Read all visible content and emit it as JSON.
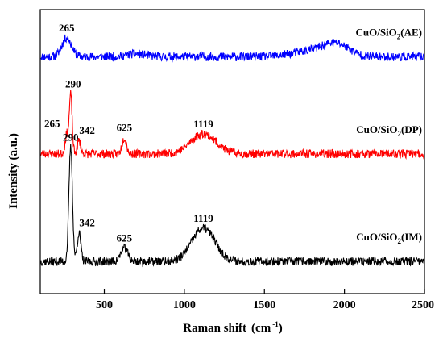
{
  "chart_data": {
    "type": "line",
    "xlabel": "Raman shift",
    "xlabel_unit_main": "(cm",
    "xlabel_unit_exp": "-1",
    "xlabel_unit_end": ")",
    "ylabel": "Intensity  (a.u.)",
    "xlim": [
      100,
      2500
    ],
    "xticks": [
      500,
      1000,
      1500,
      2000,
      2500
    ],
    "y_ticks_shown": false,
    "grid": false,
    "series": [
      {
        "name_main": "CuO/SiO",
        "name_sub": "2",
        "name_end": "(AE)",
        "color": "#0000ff",
        "offset": 2.0,
        "baseline": 0.2,
        "noise": 0.045,
        "seed": 11,
        "peaks": [
          {
            "x": 265,
            "height": 0.2,
            "width": 30
          },
          {
            "x": 700,
            "height": 0.03,
            "width": 60
          },
          {
            "x": 1780,
            "height": 0.06,
            "width": 110
          },
          {
            "x": 1950,
            "height": 0.13,
            "width": 80
          }
        ],
        "peak_labels": [
          {
            "x": 265,
            "text": "265"
          }
        ]
      },
      {
        "name_main": "CuO/SiO",
        "name_sub": "2",
        "name_end": "(DP)",
        "color": "#ff0000",
        "offset": 1.0,
        "baseline": 0.18,
        "noise": 0.045,
        "seed": 23,
        "peaks": [
          {
            "x": 265,
            "height": 0.2,
            "width": 10
          },
          {
            "x": 290,
            "height": 0.62,
            "width": 9
          },
          {
            "x": 342,
            "height": 0.14,
            "width": 10
          },
          {
            "x": 625,
            "height": 0.17,
            "width": 14
          },
          {
            "x": 1119,
            "height": 0.21,
            "width": 80
          }
        ],
        "peak_labels": [
          {
            "x": 265,
            "text": "265"
          },
          {
            "x": 290,
            "text": "290"
          },
          {
            "x": 342,
            "text": "342"
          },
          {
            "x": 625,
            "text": "625"
          },
          {
            "x": 1119,
            "text": "1119"
          }
        ]
      },
      {
        "name_main": "CuO/SiO",
        "name_sub": "2",
        "name_end": "(IM)",
        "color": "#000000",
        "offset": 0.0,
        "baseline": 0.05,
        "noise": 0.045,
        "seed": 37,
        "peaks": [
          {
            "x": 290,
            "height": 1.2,
            "width": 11
          },
          {
            "x": 342,
            "height": 0.3,
            "width": 11
          },
          {
            "x": 625,
            "height": 0.14,
            "width": 22
          },
          {
            "x": 1119,
            "height": 0.35,
            "width": 72
          }
        ],
        "peak_labels": [
          {
            "x": 290,
            "text": "290"
          },
          {
            "x": 342,
            "text": "342"
          },
          {
            "x": 625,
            "text": "625"
          },
          {
            "x": 1119,
            "text": "1119"
          }
        ]
      }
    ]
  }
}
